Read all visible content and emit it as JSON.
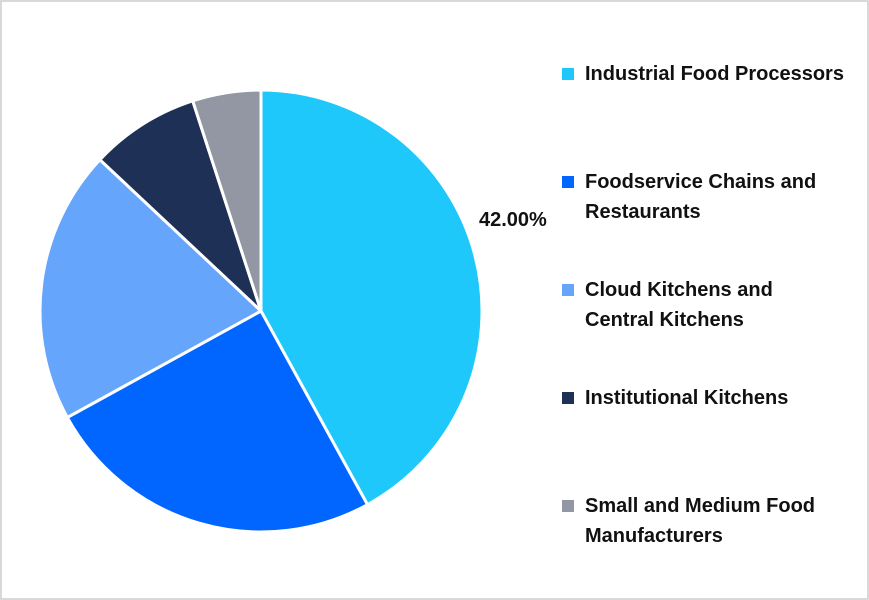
{
  "chart_data": {
    "type": "pie",
    "title": "",
    "start_angle_deg": 0,
    "direction": "clockwise",
    "categories": [
      "Industrial Food Processors",
      "Foodservice Chains and Restaurants",
      "Cloud Kitchens and Central Kitchens",
      "Institutional Kitchens",
      "Small and Medium Food Manufacturers"
    ],
    "values": [
      42,
      25,
      20,
      8,
      5
    ],
    "unit": "%",
    "colors": [
      "#1ec8fb",
      "#0066ff",
      "#66a5fc",
      "#1e3056",
      "#9297a3"
    ],
    "data_labels": [
      {
        "category": "Industrial Food Processors",
        "text": "42.00%"
      }
    ],
    "legend_position": "right"
  },
  "legend": {
    "items": [
      {
        "label_line1": "Industrial Food Processors",
        "label_line2": "",
        "color": "#1ec8fb"
      },
      {
        "label_line1": "Foodservice Chains and",
        "label_line2": "Restaurants",
        "color": "#0066ff"
      },
      {
        "label_line1": "Cloud Kitchens and",
        "label_line2": "Central Kitchens",
        "color": "#66a5fc"
      },
      {
        "label_line1": "Institutional Kitchens",
        "label_line2": "",
        "color": "#1e3056"
      },
      {
        "label_line1": "Small and Medium Food",
        "label_line2": "Manufacturers",
        "color": "#9297a3"
      }
    ]
  },
  "labels": {
    "industrial": "42.00%"
  }
}
